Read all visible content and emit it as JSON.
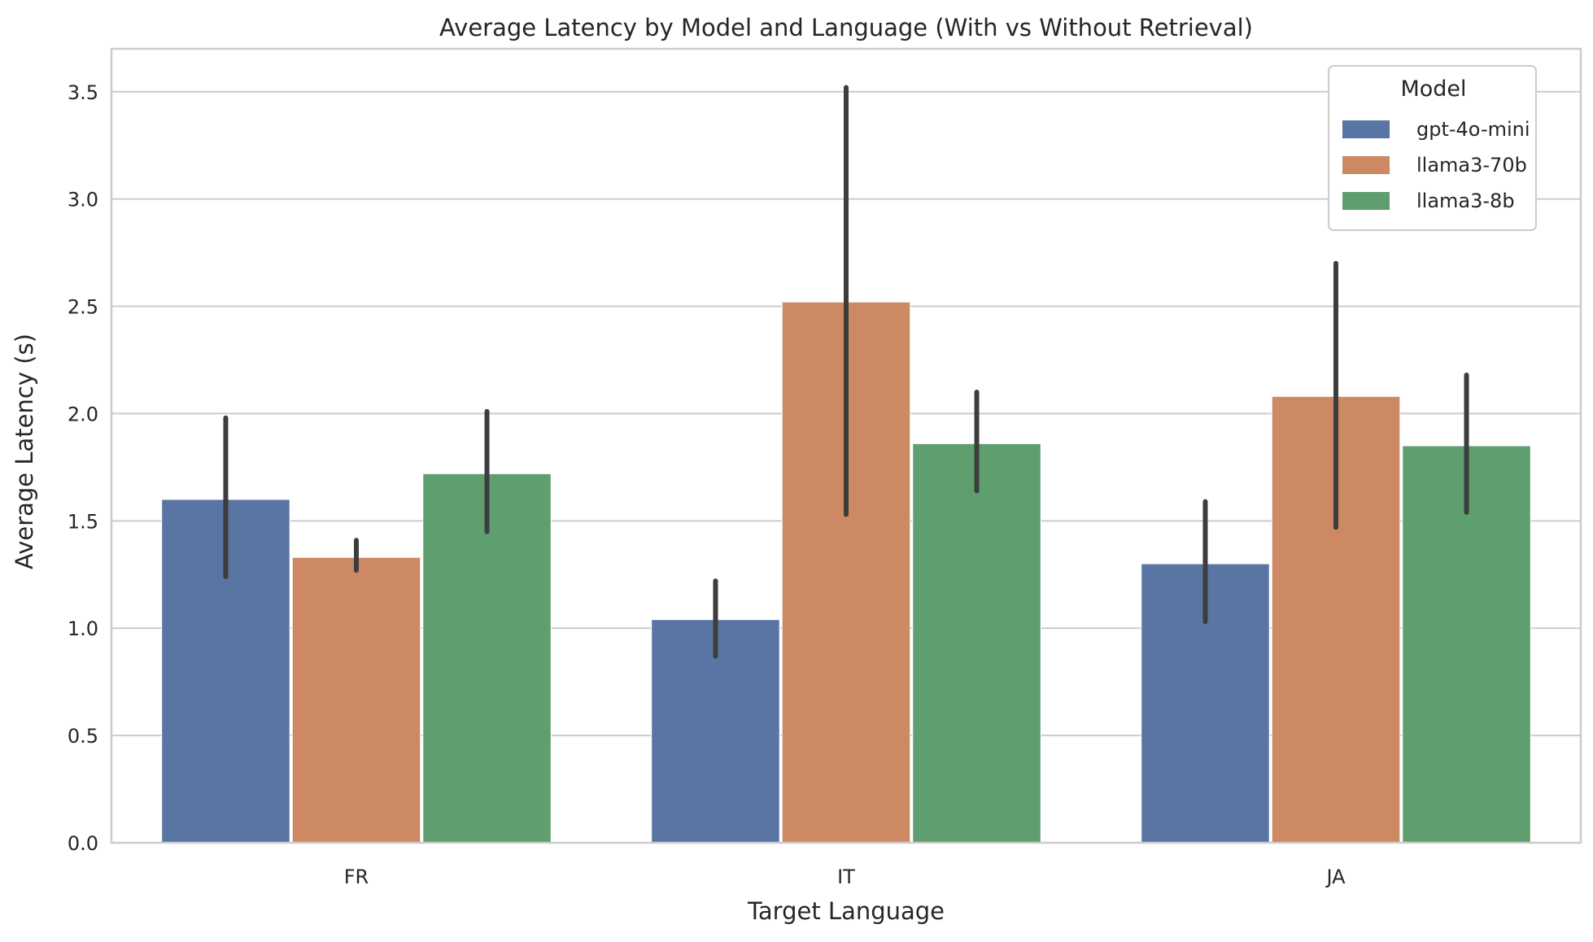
{
  "chart_data": {
    "type": "bar",
    "title": "Average Latency by Model and Language (With vs Without Retrieval)",
    "xlabel": "Target Language",
    "ylabel": "Average Latency (s)",
    "categories": [
      "FR",
      "IT",
      "JA"
    ],
    "ylim": [
      0,
      3.7
    ],
    "yticks": [
      0.0,
      0.5,
      1.0,
      1.5,
      2.0,
      2.5,
      3.0,
      3.5
    ],
    "ytick_labels": [
      "0.0",
      "0.5",
      "1.0",
      "1.5",
      "2.0",
      "2.5",
      "3.0",
      "3.5"
    ],
    "grid": "horizontal",
    "legend": {
      "title": "Model",
      "placement": "top-right"
    },
    "series": [
      {
        "name": "gpt-4o-mini",
        "color": "#5975a4",
        "values": [
          1.6,
          1.04,
          1.3
        ],
        "err_low": [
          1.24,
          0.87,
          1.03
        ],
        "err_high": [
          1.98,
          1.22,
          1.59
        ]
      },
      {
        "name": "llama3-70b",
        "color": "#cc8963",
        "values": [
          1.33,
          2.52,
          2.08
        ],
        "err_low": [
          1.27,
          1.53,
          1.47
        ],
        "err_high": [
          1.41,
          3.52,
          2.7
        ]
      },
      {
        "name": "llama3-8b",
        "color": "#5f9e6e",
        "values": [
          1.72,
          1.86,
          1.85
        ],
        "err_low": [
          1.45,
          1.64,
          1.54
        ],
        "err_high": [
          2.01,
          2.1,
          2.18
        ]
      }
    ]
  }
}
